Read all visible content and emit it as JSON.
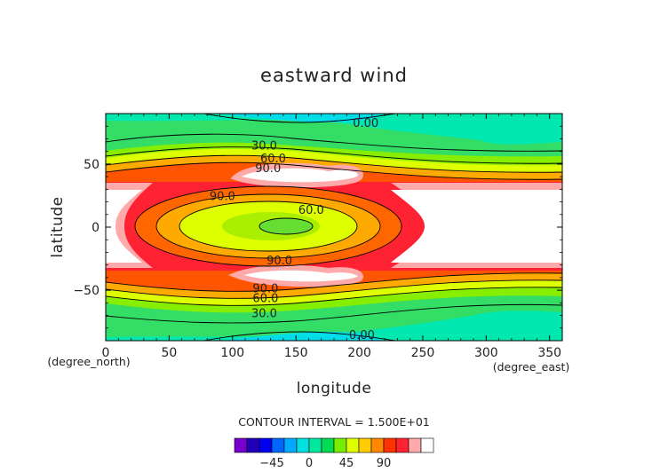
{
  "chart_data": {
    "type": "heatmap",
    "title": "eastward wind",
    "xlabel": "longitude",
    "ylabel": "latitude",
    "x_unit": "(degree_east)",
    "y_unit": "(degree_north)",
    "xlim": [
      0,
      360
    ],
    "ylim": [
      -90,
      90
    ],
    "x_ticks": [
      0,
      50,
      100,
      150,
      200,
      250,
      300,
      350
    ],
    "y_ticks": [
      -50,
      0,
      50
    ],
    "contour_interval_text": "CONTOUR INTERVAL = 1.500E+01",
    "contour_labels": [
      {
        "text": "0.00",
        "x": 205,
        "y": 83
      },
      {
        "text": "30.0",
        "x": 125,
        "y": 65
      },
      {
        "text": "60.0",
        "x": 132,
        "y": 55
      },
      {
        "text": "90.0",
        "x": 128,
        "y": 47
      },
      {
        "text": "90.0",
        "x": 92,
        "y": 25
      },
      {
        "text": "60.0",
        "x": 162,
        "y": 14
      },
      {
        "text": "90.0",
        "x": 137,
        "y": -26
      },
      {
        "text": "90.0",
        "x": 126,
        "y": -48
      },
      {
        "text": "60.0",
        "x": 126,
        "y": -56
      },
      {
        "text": "30.0",
        "x": 125,
        "y": -68
      },
      {
        "text": "0.00",
        "x": 202,
        "y": -85
      }
    ],
    "colorbar": {
      "tick_values": [
        -45,
        0,
        45,
        90
      ],
      "tick_labels": [
        "−45",
        "0",
        "45",
        "90"
      ],
      "levels": [
        -75,
        -60,
        -45,
        -30,
        -15,
        0,
        15,
        30,
        45,
        60,
        75,
        90,
        105,
        120
      ],
      "colors": [
        "#7700cc",
        "#2200bb",
        "#0000ee",
        "#0066ff",
        "#00aaff",
        "#00e0e0",
        "#00e8a0",
        "#00dd55",
        "#77ee00",
        "#ddff00",
        "#ffcc00",
        "#ff8800",
        "#ff3300",
        "#ff2233",
        "#ffaaaa",
        "#ffffff"
      ]
    },
    "grid": false
  }
}
